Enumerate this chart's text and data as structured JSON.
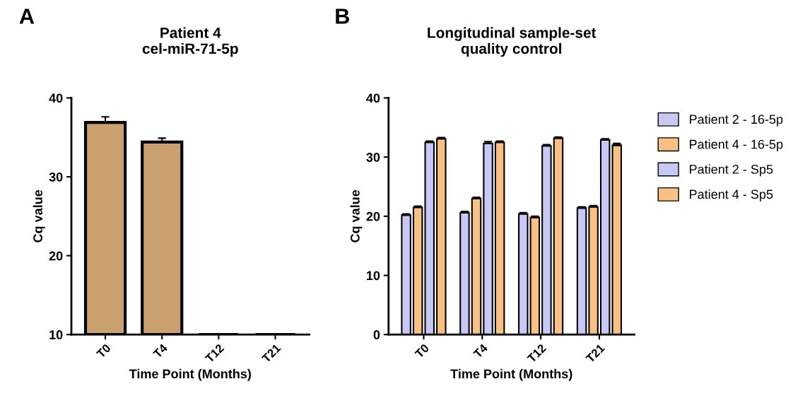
{
  "chart_data": [
    {
      "type": "bar",
      "title": "Patient 4\ncel-miR-71-5p",
      "xlabel": "Time Point (Months)",
      "ylabel": "Cq value",
      "annotations": [
        "A"
      ],
      "categories": [
        "T0",
        "T4",
        "T12",
        "T21"
      ],
      "values": [
        36.9,
        34.4,
        null,
        null
      ],
      "errors": [
        0.7,
        0.5,
        null,
        null
      ],
      "color": "#c9a06e",
      "ylim": [
        10,
        40
      ],
      "yticks": [
        10,
        20,
        30,
        40
      ],
      "grid": false,
      "legend": false
    },
    {
      "type": "bar",
      "title": "Longitudinal sample-set\nquality control",
      "xlabel": "Time Point (Months)",
      "ylabel": "Cq value",
      "annotations": [
        "B"
      ],
      "categories": [
        "T0",
        "T4",
        "T12",
        "T21"
      ],
      "series": [
        {
          "name": "Patient 2 - 16-5p",
          "color": "#c8c8f5",
          "values": [
            20.2,
            20.6,
            20.4,
            21.4
          ],
          "errors": [
            0.2,
            0.2,
            0.2,
            0.2
          ]
        },
        {
          "name": "Patient 4 - 16-5p",
          "color": "#f9c084",
          "values": [
            21.5,
            23.0,
            19.8,
            21.6
          ],
          "errors": [
            0.2,
            0.2,
            0.2,
            0.2
          ]
        },
        {
          "name": "Patient 2 - Sp5",
          "color": "#c8c8f5",
          "values": [
            32.5,
            32.3,
            31.9,
            32.9
          ],
          "errors": [
            0.2,
            0.3,
            0.2,
            0.2
          ]
        },
        {
          "name": "Patient 4 - Sp5",
          "color": "#f9c084",
          "values": [
            33.1,
            32.5,
            33.2,
            32.0
          ],
          "errors": [
            0.2,
            0.2,
            0.2,
            0.3
          ]
        }
      ],
      "ylim": [
        0,
        40
      ],
      "yticks": [
        0,
        10,
        20,
        30,
        40
      ],
      "grid": false,
      "legend": "right"
    }
  ]
}
